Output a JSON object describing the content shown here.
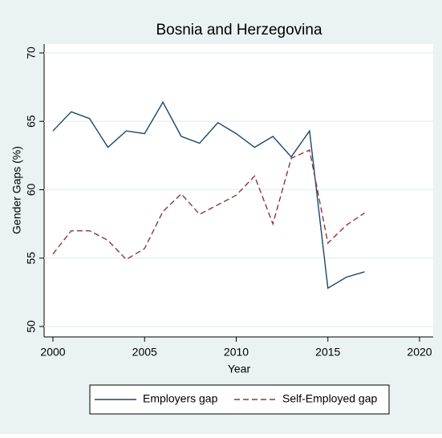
{
  "chart_data": {
    "type": "line",
    "title": "Bosnia and Herzegovina",
    "x_label": "Year",
    "y_label": "Gender Gaps (%)",
    "x": [
      2000,
      2001,
      2002,
      2003,
      2004,
      2005,
      2006,
      2007,
      2008,
      2009,
      2010,
      2011,
      2012,
      2013,
      2014,
      2015,
      2016,
      2017
    ],
    "series": [
      {
        "name": "Employers gap",
        "color": "#1a476f",
        "dash": "solid",
        "values": [
          64.3,
          65.7,
          65.2,
          63.1,
          64.3,
          64.1,
          66.4,
          63.9,
          63.4,
          64.9,
          64.1,
          63.1,
          63.9,
          62.4,
          64.3,
          52.8,
          53.6,
          54.0
        ]
      },
      {
        "name": "Self-Employed gap",
        "color": "#90353b",
        "dash": "dashed",
        "values": [
          55.3,
          57.0,
          57.0,
          56.3,
          54.9,
          55.7,
          58.4,
          59.7,
          58.2,
          58.9,
          59.6,
          61.0,
          57.5,
          62.3,
          62.9,
          56.1,
          57.4,
          58.3
        ]
      }
    ],
    "xlim": [
      2000,
      2020
    ],
    "xticks": [
      2000,
      2005,
      2010,
      2015,
      2020
    ],
    "ylim": [
      50,
      70
    ],
    "yticks": [
      50,
      55,
      60,
      65,
      70
    ],
    "grid": true,
    "legend": "bottom"
  }
}
